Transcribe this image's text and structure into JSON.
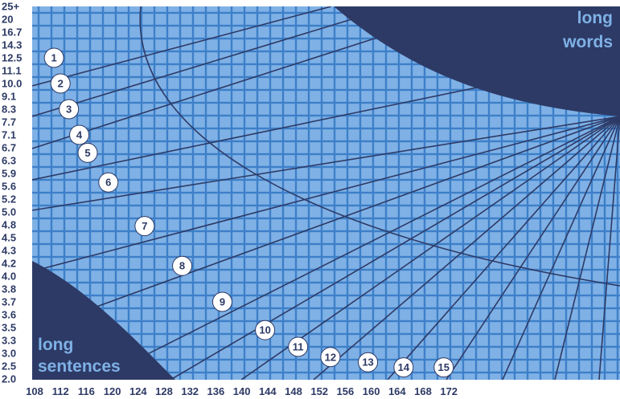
{
  "chart_data": {
    "type": "line",
    "title": "",
    "xlabel": "",
    "ylabel": "",
    "xlim": [
      108,
      174
    ],
    "x_ticks": [
      "108",
      "112",
      "116",
      "120",
      "124",
      "128",
      "132",
      "136",
      "140",
      "144",
      "148",
      "152",
      "156",
      "160",
      "164",
      "168",
      "172"
    ],
    "y_ticks": [
      "2.0",
      "2.5",
      "3.0",
      "3.3",
      "3.5",
      "3.6",
      "3.7",
      "3.8",
      "4.0",
      "4.2",
      "4.3",
      "4.5",
      "4.8",
      "5.0",
      "5.2",
      "5.6",
      "5.9",
      "6.3",
      "6.7",
      "7.1",
      "7.7",
      "8.3",
      "9.1",
      "10.0",
      "11.1",
      "12.5",
      "14.3",
      "16.7",
      "20",
      "25+"
    ],
    "grid": true,
    "colors": {
      "background": "#3d7fc8",
      "panel": "#7fb1e6",
      "grid": "#3d7fc8",
      "lines": "#2d3a66",
      "region": "#2d3a66",
      "label": "#7fb1e6"
    },
    "region_labels": {
      "top_right": "long words",
      "bottom_left": "long sentences"
    },
    "levels": [
      {
        "label": "1",
        "x": 111.0,
        "y_index": 25.0
      },
      {
        "label": "2",
        "x": 112.0,
        "y_index": 23.0
      },
      {
        "label": "3",
        "x": 113.3,
        "y_index": 21.0
      },
      {
        "label": "4",
        "x": 114.9,
        "y_index": 19.0
      },
      {
        "label": "5",
        "x": 116.2,
        "y_index": 17.6
      },
      {
        "label": "6",
        "x": 119.4,
        "y_index": 15.3
      },
      {
        "label": "7",
        "x": 125.0,
        "y_index": 11.9
      },
      {
        "label": "8",
        "x": 130.8,
        "y_index": 8.8
      },
      {
        "label": "9",
        "x": 137.0,
        "y_index": 6.0
      },
      {
        "label": "10",
        "x": 143.6,
        "y_index": 3.8
      },
      {
        "label": "11",
        "x": 148.7,
        "y_index": 2.5
      },
      {
        "label": "12",
        "x": 153.7,
        "y_index": 1.7
      },
      {
        "label": "13",
        "x": 159.5,
        "y_index": 1.3
      },
      {
        "label": "14",
        "x": 165.0,
        "y_index": 0.9
      },
      {
        "label": "15",
        "x": 171.2,
        "y_index": 0.9
      }
    ]
  }
}
